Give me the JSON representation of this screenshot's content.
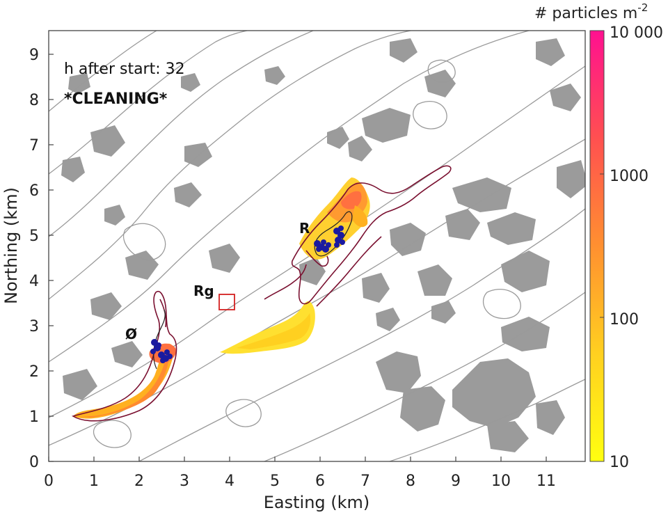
{
  "map": {
    "status_text": "h after start: 32",
    "mode_label": "*CLEANING*",
    "x_axis_title": "Easting (km)",
    "y_axis_title": "Northing (km)",
    "x_ticks": [
      "0",
      "1",
      "2",
      "3",
      "4",
      "5",
      "6",
      "7",
      "8",
      "9",
      "10",
      "11"
    ],
    "y_ticks": [
      "0",
      "1",
      "2",
      "3",
      "4",
      "5",
      "6",
      "7",
      "8",
      "9"
    ],
    "site_labels": {
      "site_r": "R",
      "site_rg": "Rg",
      "site_o": "Ø"
    },
    "colorbar": {
      "title_prefix": "# particles m",
      "title_exponent": "-2",
      "tick_labels": [
        "10 000",
        "1000",
        "100",
        "10"
      ],
      "scale": "log",
      "range": [
        10,
        10000
      ],
      "colors": [
        "#ffff10",
        "#ffc020",
        "#ff8a30",
        "#ff4a58",
        "#ff1090"
      ]
    },
    "colors": {
      "land": "#9b9b9b",
      "contour": "#9a9a9a",
      "plume_outline": "#7a1030",
      "particles": "#1a1aa0",
      "marker": "#d42020"
    }
  }
}
